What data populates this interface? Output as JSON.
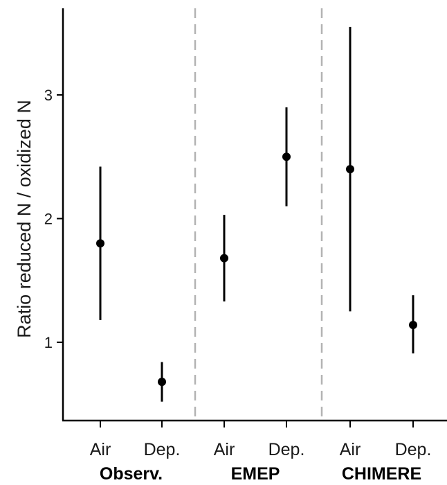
{
  "chart_data": {
    "type": "scatter",
    "ylabel": "Ratio reduced N / oxidized N",
    "xlabel": "",
    "ylim": [
      0.4,
      3.6
    ],
    "yticks": [
      1,
      2,
      3
    ],
    "grid": false,
    "groups": [
      {
        "name": "Observ.",
        "points": [
          {
            "category": "Air",
            "value": 1.8,
            "low": 1.18,
            "high": 2.42
          },
          {
            "category": "Dep.",
            "value": 0.68,
            "low": 0.52,
            "high": 0.84
          }
        ]
      },
      {
        "name": "EMEP",
        "points": [
          {
            "category": "Air",
            "value": 1.68,
            "low": 1.33,
            "high": 2.03
          },
          {
            "category": "Dep.",
            "value": 2.5,
            "low": 2.1,
            "high": 2.9
          }
        ]
      },
      {
        "name": "CHIMERE",
        "points": [
          {
            "category": "Air",
            "value": 2.4,
            "low": 1.25,
            "high": 3.55
          },
          {
            "category": "Dep.",
            "value": 1.14,
            "low": 0.91,
            "high": 1.38
          }
        ]
      }
    ],
    "colors": {
      "point": "#000000",
      "axis": "#000000",
      "separator": "#b3b3b3"
    }
  }
}
